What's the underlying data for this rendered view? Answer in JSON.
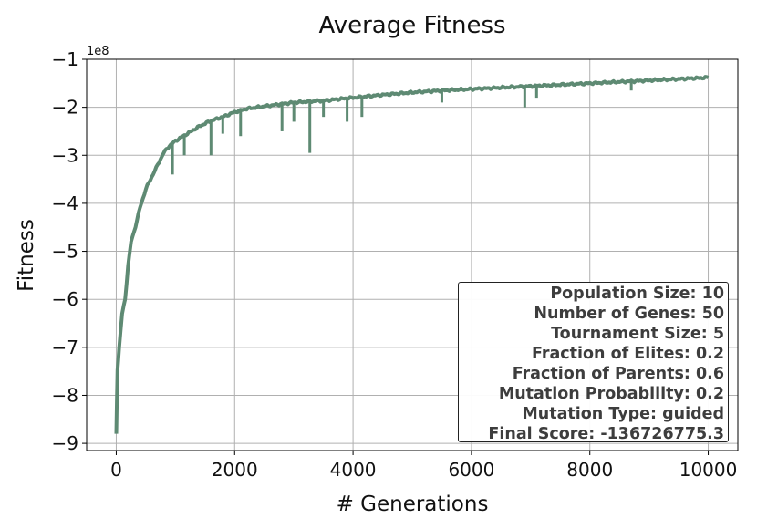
{
  "chart_data": {
    "type": "line",
    "title": "Average Fitness",
    "xlabel": "# Generations",
    "ylabel": "Fitness",
    "y_scale_label": "1e8",
    "xlim": [
      -500,
      10500
    ],
    "ylim": [
      -9.15,
      -1.0
    ],
    "xticks": [
      0,
      2000,
      4000,
      6000,
      8000,
      10000
    ],
    "xtick_labels": [
      "0",
      "2000",
      "4000",
      "6000",
      "8000",
      "10000"
    ],
    "yticks": [
      -1,
      -2,
      -3,
      -4,
      -5,
      -6,
      -7,
      -8,
      -9
    ],
    "ytick_labels": [
      "−1",
      "−2",
      "−3",
      "−4",
      "−5",
      "−6",
      "−7",
      "−8",
      "−9"
    ],
    "grid": true,
    "series": [
      {
        "color": "#5e8a73",
        "x": [
          0,
          20,
          50,
          100,
          150,
          200,
          250,
          300,
          400,
          500,
          600,
          700,
          800,
          900,
          1000,
          1200,
          1400,
          1600,
          1800,
          2000,
          2200,
          2500,
          2800,
          3000,
          3500,
          4000,
          4500,
          5000,
          5500,
          6000,
          6500,
          7000,
          7500,
          8000,
          8500,
          9000,
          9500,
          10000
        ],
        "y": [
          -8.8,
          -7.5,
          -7.0,
          -6.3,
          -6.0,
          -5.3,
          -4.8,
          -4.6,
          -4.1,
          -3.7,
          -3.45,
          -3.2,
          -2.95,
          -2.8,
          -2.7,
          -2.55,
          -2.4,
          -2.28,
          -2.2,
          -2.1,
          -2.03,
          -1.98,
          -1.93,
          -1.9,
          -1.86,
          -1.8,
          -1.74,
          -1.69,
          -1.65,
          -1.62,
          -1.59,
          -1.56,
          -1.53,
          -1.5,
          -1.47,
          -1.44,
          -1.41,
          -1.38
        ]
      }
    ],
    "dips": [
      {
        "x": 950,
        "y": -3.4
      },
      {
        "x": 1150,
        "y": -3.0
      },
      {
        "x": 1600,
        "y": -3.0
      },
      {
        "x": 1800,
        "y": -2.55
      },
      {
        "x": 2100,
        "y": -2.6
      },
      {
        "x": 2800,
        "y": -2.5
      },
      {
        "x": 3000,
        "y": -2.3
      },
      {
        "x": 3270,
        "y": -2.95
      },
      {
        "x": 3500,
        "y": -2.2
      },
      {
        "x": 3900,
        "y": -2.3
      },
      {
        "x": 4150,
        "y": -2.2
      },
      {
        "x": 5500,
        "y": -1.9
      },
      {
        "x": 6900,
        "y": -2.0
      },
      {
        "x": 7100,
        "y": -1.8
      },
      {
        "x": 8700,
        "y": -1.65
      }
    ]
  },
  "info_box": {
    "lines": [
      "Population Size: 10",
      "Number of Genes: 50",
      "Tournament Size: 5",
      "Fraction of Elites: 0.2",
      "Fraction of Parents: 0.6",
      "Mutation Probability: 0.2",
      "Mutation Type: guided",
      "Final Score: -136726775.3"
    ]
  }
}
